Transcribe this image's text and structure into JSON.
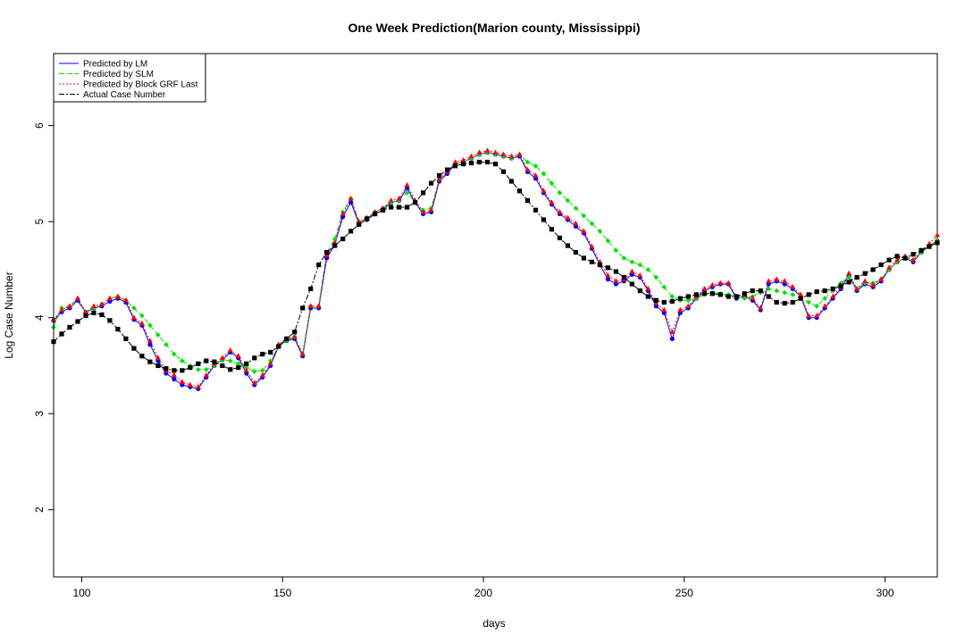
{
  "chart_data": {
    "type": "line",
    "title": "One Week Prediction(Marion county, Mississippi)",
    "xlabel": "days",
    "ylabel": "Log Case Number",
    "xlim": [
      93,
      313
    ],
    "ylim": [
      1.3,
      6.75
    ],
    "x_ticks": [
      100,
      150,
      200,
      250,
      300
    ],
    "y_ticks": [
      2,
      3,
      4,
      5,
      6
    ],
    "grid": false,
    "legend_position": "top-left",
    "x": [
      93,
      95,
      97,
      99,
      101,
      103,
      105,
      107,
      109,
      111,
      113,
      115,
      117,
      119,
      121,
      123,
      125,
      127,
      129,
      131,
      133,
      135,
      137,
      139,
      141,
      143,
      145,
      147,
      149,
      151,
      153,
      155,
      157,
      159,
      161,
      163,
      165,
      167,
      169,
      171,
      173,
      175,
      177,
      179,
      181,
      183,
      185,
      187,
      189,
      191,
      193,
      195,
      197,
      199,
      201,
      203,
      205,
      207,
      209,
      211,
      213,
      215,
      217,
      219,
      221,
      223,
      225,
      227,
      229,
      231,
      233,
      235,
      237,
      239,
      241,
      243,
      245,
      247,
      249,
      251,
      253,
      255,
      257,
      259,
      261,
      263,
      265,
      267,
      269,
      271,
      273,
      275,
      277,
      279,
      281,
      283,
      285,
      287,
      289,
      291,
      293,
      295,
      297,
      299,
      301,
      303,
      305,
      307,
      309,
      311,
      313
    ],
    "series": [
      {
        "name": "Predicted by LM",
        "color": "#0000ff",
        "style": "solid",
        "marker": "circle",
        "values": [
          3.97,
          4.06,
          4.1,
          4.18,
          4.05,
          4.1,
          4.12,
          4.17,
          4.2,
          4.16,
          3.98,
          3.92,
          3.72,
          3.55,
          3.42,
          3.36,
          3.3,
          3.28,
          3.26,
          3.38,
          3.5,
          3.56,
          3.64,
          3.58,
          3.42,
          3.3,
          3.38,
          3.5,
          3.7,
          3.76,
          3.78,
          3.6,
          4.1,
          4.1,
          4.62,
          4.76,
          5.05,
          5.2,
          4.98,
          5.02,
          5.08,
          5.12,
          5.2,
          5.22,
          5.35,
          5.2,
          5.08,
          5.1,
          5.42,
          5.5,
          5.6,
          5.62,
          5.66,
          5.7,
          5.72,
          5.7,
          5.68,
          5.66,
          5.68,
          5.52,
          5.45,
          5.3,
          5.18,
          5.08,
          5.02,
          4.95,
          4.88,
          4.72,
          4.55,
          4.4,
          4.35,
          4.38,
          4.45,
          4.42,
          4.28,
          4.12,
          4.05,
          3.78,
          4.05,
          4.1,
          4.2,
          4.28,
          4.32,
          4.35,
          4.35,
          4.2,
          4.22,
          4.18,
          4.08,
          4.35,
          4.38,
          4.35,
          4.3,
          4.22,
          4.0,
          4.0,
          4.1,
          4.2,
          4.3,
          4.44,
          4.28,
          4.35,
          4.32,
          4.38,
          4.5,
          4.58,
          4.62,
          4.58,
          4.68,
          4.75,
          4.8
        ]
      },
      {
        "name": "Predicted by SLM",
        "color": "#00e000",
        "style": "dashed",
        "marker": "diamond",
        "values": [
          3.9,
          4.1,
          4.12,
          4.2,
          4.05,
          4.1,
          4.14,
          4.2,
          4.22,
          4.18,
          4.1,
          4.02,
          3.92,
          3.82,
          3.72,
          3.62,
          3.55,
          3.5,
          3.46,
          3.46,
          3.5,
          3.56,
          3.55,
          3.52,
          3.48,
          3.44,
          3.45,
          3.55,
          3.7,
          3.76,
          3.8,
          3.62,
          4.12,
          4.12,
          4.68,
          4.82,
          5.1,
          5.24,
          5.0,
          5.04,
          5.1,
          5.14,
          5.2,
          5.22,
          5.3,
          5.2,
          5.12,
          5.14,
          5.44,
          5.52,
          5.6,
          5.62,
          5.66,
          5.7,
          5.72,
          5.7,
          5.68,
          5.66,
          5.7,
          5.62,
          5.58,
          5.5,
          5.4,
          5.3,
          5.22,
          5.14,
          5.06,
          4.98,
          4.9,
          4.8,
          4.7,
          4.62,
          4.58,
          4.55,
          4.5,
          4.42,
          4.32,
          4.22,
          4.18,
          4.18,
          4.2,
          4.24,
          4.26,
          4.25,
          4.24,
          4.22,
          4.2,
          4.22,
          4.26,
          4.3,
          4.28,
          4.26,
          4.24,
          4.2,
          4.16,
          4.12,
          4.2,
          4.28,
          4.36,
          4.42,
          4.3,
          4.36,
          4.36,
          4.4,
          4.5,
          4.58,
          4.62,
          4.6,
          4.68,
          4.74,
          4.8
        ]
      },
      {
        "name": "Predicted by Block GRF Last",
        "color": "#ff0000",
        "style": "dotted",
        "marker": "triangle",
        "values": [
          3.98,
          4.08,
          4.12,
          4.2,
          4.06,
          4.12,
          4.14,
          4.2,
          4.22,
          4.18,
          4.0,
          3.94,
          3.76,
          3.58,
          3.45,
          3.4,
          3.33,
          3.3,
          3.28,
          3.4,
          3.52,
          3.58,
          3.66,
          3.6,
          3.45,
          3.32,
          3.4,
          3.52,
          3.72,
          3.78,
          3.8,
          3.62,
          4.12,
          4.12,
          4.65,
          4.78,
          5.08,
          5.24,
          5.0,
          5.04,
          5.1,
          5.14,
          5.22,
          5.24,
          5.38,
          5.22,
          5.1,
          5.12,
          5.44,
          5.52,
          5.62,
          5.64,
          5.68,
          5.72,
          5.74,
          5.72,
          5.7,
          5.68,
          5.7,
          5.54,
          5.48,
          5.32,
          5.2,
          5.1,
          5.04,
          4.98,
          4.9,
          4.74,
          4.58,
          4.44,
          4.38,
          4.4,
          4.48,
          4.44,
          4.3,
          4.15,
          4.08,
          3.85,
          4.08,
          4.12,
          4.22,
          4.3,
          4.34,
          4.36,
          4.36,
          4.22,
          4.24,
          4.2,
          4.1,
          4.38,
          4.4,
          4.38,
          4.32,
          4.24,
          4.02,
          4.02,
          4.12,
          4.22,
          4.32,
          4.46,
          4.3,
          4.38,
          4.34,
          4.4,
          4.52,
          4.6,
          4.64,
          4.6,
          4.7,
          4.77,
          4.86
        ]
      },
      {
        "name": "Actual Case Number",
        "color": "#000000",
        "style": "dashdot",
        "marker": "square",
        "values": [
          3.75,
          3.83,
          3.9,
          3.96,
          4.02,
          4.05,
          4.03,
          3.97,
          3.88,
          3.78,
          3.68,
          3.6,
          3.54,
          3.5,
          3.47,
          3.45,
          3.45,
          3.48,
          3.52,
          3.55,
          3.54,
          3.5,
          3.46,
          3.48,
          3.52,
          3.58,
          3.62,
          3.64,
          3.7,
          3.78,
          3.85,
          4.1,
          4.3,
          4.55,
          4.68,
          4.75,
          4.82,
          4.9,
          4.97,
          5.03,
          5.08,
          5.12,
          5.15,
          5.15,
          5.15,
          5.2,
          5.3,
          5.4,
          5.48,
          5.54,
          5.58,
          5.6,
          5.61,
          5.62,
          5.62,
          5.6,
          5.52,
          5.42,
          5.32,
          5.22,
          5.12,
          5.02,
          4.92,
          4.83,
          4.75,
          4.68,
          4.62,
          4.58,
          4.55,
          4.52,
          4.48,
          4.42,
          4.35,
          4.28,
          4.22,
          4.18,
          4.16,
          4.17,
          4.2,
          4.22,
          4.24,
          4.25,
          4.25,
          4.24,
          4.22,
          4.22,
          4.25,
          4.28,
          4.28,
          4.22,
          4.16,
          4.15,
          4.16,
          4.2,
          4.24,
          4.27,
          4.28,
          4.3,
          4.33,
          4.37,
          4.42,
          4.46,
          4.5,
          4.55,
          4.6,
          4.64,
          4.62,
          4.66,
          4.7,
          4.74,
          4.78
        ]
      }
    ]
  }
}
